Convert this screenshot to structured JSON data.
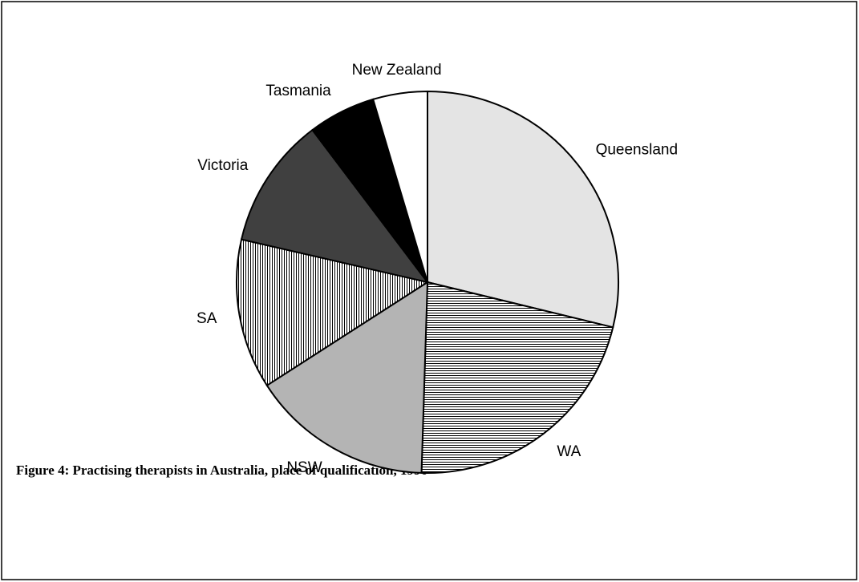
{
  "chart_data": {
    "type": "pie",
    "caption": "Figure 4: Practising therapists in Australia, place of qualification, 1996",
    "categories": [
      "Queensland",
      "WA",
      "NSW",
      "SA",
      "Victoria",
      "Tasmania",
      "New Zealand"
    ],
    "values": [
      28.8,
      21.7,
      15.4,
      12.7,
      11.1,
      5.7,
      4.6
    ],
    "colors": [
      "#e4e4e4",
      "#ffffff",
      "#b4b4b4",
      "#ffffff",
      "#404040",
      "#000000",
      "#ffffff"
    ],
    "patterns": [
      "solid",
      "horizontal",
      "solid",
      "vertical",
      "solid",
      "solid",
      "solid"
    ],
    "start_angle": 0,
    "direction": "clockwise"
  }
}
